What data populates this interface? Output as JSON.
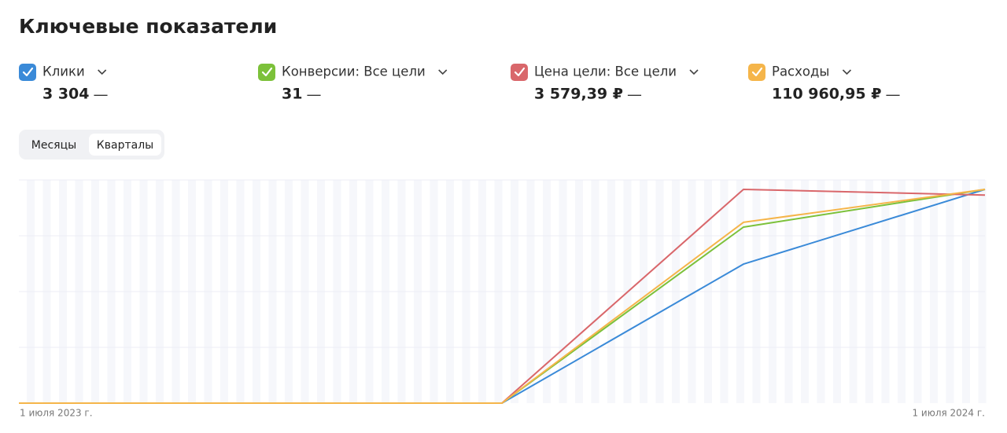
{
  "header": {
    "title": "Ключевые показатели"
  },
  "metrics": [
    {
      "value": "3 304",
      "delta": "—",
      "checked": true
    },
    {
      "value": "31",
      "delta": "—",
      "checked": true
    },
    {
      "value": "3 579,39 ₽",
      "delta": "—",
      "checked": true
    },
    {
      "value": "110 960,95 ₽",
      "delta": "—",
      "checked": true
    }
  ],
  "tabs": [
    "Месяцы",
    "Кварталы"
  ],
  "active_tab": 1,
  "chart_data": {
    "type": "line",
    "categories": [
      "1 июля 2023 г.",
      null,
      null,
      null,
      "1 июля 2024 г."
    ],
    "grid": true,
    "series": [
      {
        "name": "Клики",
        "color": "#3a8ad8",
        "values": [
          0,
          0,
          0,
          1302,
          2002
        ]
      },
      {
        "name": "Конверсии: Все цели",
        "color": "#7cc13a",
        "values": [
          0,
          0,
          0,
          14,
          17
        ]
      },
      {
        "name": "Цена цели: Все цели",
        "color": "#d9676b",
        "values": [
          0,
          0,
          0,
          3632,
          3536
        ]
      },
      {
        "name": "Расходы",
        "color": "#f5b54a",
        "values": [
          0,
          0,
          0,
          50852,
          60109
        ]
      }
    ]
  }
}
